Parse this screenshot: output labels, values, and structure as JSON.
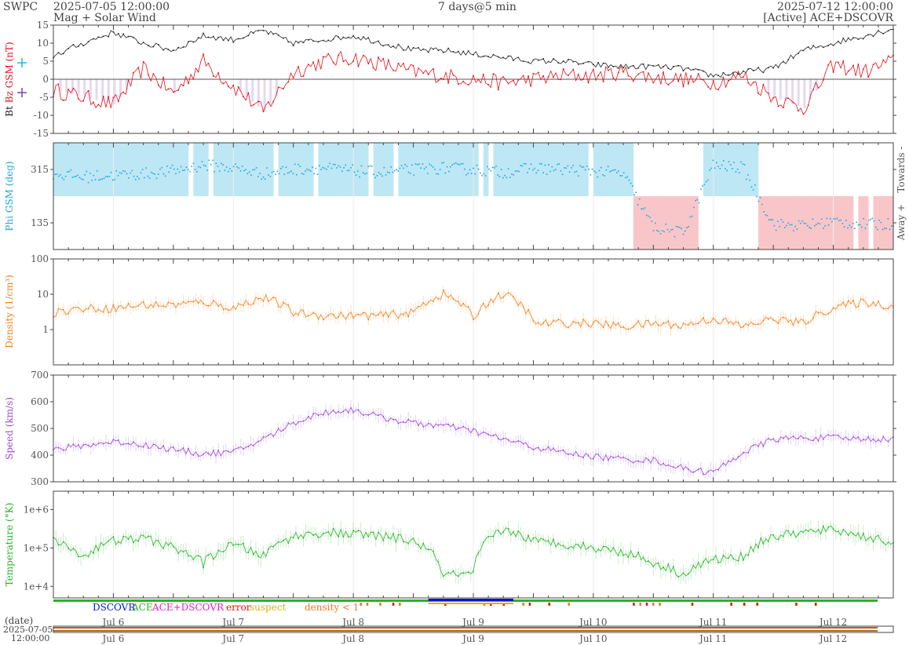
{
  "header": {
    "brand": "SWPC",
    "start_time": "2025-07-05 12:00:00",
    "subtitle": "Mag + Solar Wind",
    "span": "7 days@5 min",
    "end_time": "2025-07-12 12:00:00",
    "source": "[Active] ACE+DSCOVR"
  },
  "legend": {
    "dscovr": "DSCOVR",
    "ace": "ACE",
    "ace_dscovr": "ACE+DSCOVR",
    "error": "error",
    "suspect": "suspect",
    "density_lt1": "density < 1"
  },
  "footer": {
    "date_label": "(date)",
    "start_date": "2025-07-05",
    "start_clock": "12:00:00"
  },
  "colors": {
    "bt": "#222222",
    "bz": "#e8101a",
    "by": "#20b6e0",
    "bx": "#7a3fc0",
    "phi": "#1ea5e0",
    "phi_toward": "#bde7f5",
    "phi_away": "#f8c6c9",
    "density": "#f08320",
    "speed": "#9b4bd6",
    "temperature": "#2ab52a",
    "bz_shade": "#ddd0ee",
    "dscovr": "#1010d0",
    "ace": "#28b428",
    "ace_dscovr": "#e020c8",
    "error": "#e81010",
    "suspect": "#e0b000",
    "density_flag": "#f07820"
  },
  "chart_data": [
    {
      "type": "line",
      "panel": "mag",
      "ylabel_parts": [
        "Bt",
        "Bz GSM (nT)"
      ],
      "ylim": [
        -15,
        15
      ],
      "yticks": [
        15,
        10,
        5,
        0,
        -5,
        -10,
        -15
      ],
      "x_dates": [
        "Jul 6",
        "Jul 7",
        "Jul 8",
        "Jul 9",
        "Jul 10",
        "Jul 11",
        "Jul 12"
      ],
      "x_hours": [
        0,
        6,
        12,
        18,
        24,
        30,
        36,
        42,
        48,
        54,
        60,
        66,
        72,
        78,
        84,
        90,
        96,
        102,
        108,
        114,
        120,
        126,
        132,
        138,
        144,
        150,
        156,
        162,
        168
      ],
      "series": [
        {
          "name": "Bt",
          "values": [
            6.5,
            10,
            13,
            10,
            8,
            12,
            11,
            13.5,
            10,
            11,
            12,
            10,
            8,
            8,
            7,
            6,
            5,
            5,
            4,
            3.5,
            3.5,
            3,
            1,
            2,
            3,
            8,
            10,
            12,
            14
          ]
        },
        {
          "name": "Bz",
          "values": [
            -3,
            -5,
            -7,
            3,
            -4,
            5,
            -2,
            -9,
            2,
            5,
            6,
            4,
            2,
            1,
            0,
            -1,
            0,
            1,
            1,
            2,
            0.5,
            0,
            -1,
            1,
            -5,
            -8,
            4,
            2,
            5
          ]
        }
      ]
    },
    {
      "type": "scatter",
      "panel": "phi",
      "ylabel": "Phi GSM (deg)",
      "ylim": [
        45,
        405
      ],
      "yticks": [
        315,
        135
      ],
      "side_labels": [
        "Towards -",
        "Away +"
      ],
      "x_hours": [
        0,
        6,
        12,
        18,
        24,
        30,
        36,
        42,
        48,
        54,
        60,
        66,
        72,
        78,
        84,
        90,
        96,
        102,
        108,
        114,
        120,
        126,
        132,
        138,
        144,
        150,
        156,
        162,
        168
      ],
      "values": [
        300,
        290,
        295,
        300,
        310,
        330,
        320,
        300,
        315,
        320,
        310,
        305,
        315,
        320,
        315,
        305,
        320,
        315,
        310,
        300,
        120,
        100,
        330,
        320,
        130,
        125,
        140,
        130,
        130
      ]
    },
    {
      "type": "line",
      "panel": "density",
      "ylabel": "Density (1/cm³)",
      "scale": "log",
      "ylim": [
        0.1,
        100
      ],
      "yticks": [
        100,
        10,
        1
      ],
      "x_hours": [
        0,
        6,
        12,
        18,
        24,
        30,
        36,
        42,
        48,
        54,
        60,
        66,
        72,
        78,
        84,
        90,
        96,
        102,
        108,
        114,
        120,
        126,
        132,
        138,
        144,
        150,
        156,
        162,
        168
      ],
      "values": [
        3,
        4,
        4,
        5,
        5,
        6,
        4,
        8,
        3,
        2.5,
        2.5,
        2.5,
        3,
        10,
        2,
        10,
        1.5,
        1.5,
        1.5,
        1.2,
        1.5,
        1.3,
        2,
        1.2,
        2,
        1.5,
        4,
        6,
        4.5
      ]
    },
    {
      "type": "line",
      "panel": "speed",
      "ylabel": "Speed (km/s)",
      "ylim": [
        300,
        700
      ],
      "yticks": [
        700,
        600,
        500,
        400,
        300
      ],
      "x_hours": [
        0,
        6,
        12,
        18,
        24,
        30,
        36,
        42,
        48,
        54,
        60,
        66,
        72,
        78,
        84,
        90,
        96,
        102,
        108,
        114,
        120,
        126,
        132,
        138,
        144,
        150,
        156,
        162,
        168
      ],
      "values": [
        420,
        435,
        450,
        440,
        420,
        405,
        410,
        460,
        520,
        560,
        570,
        540,
        520,
        510,
        490,
        460,
        430,
        410,
        395,
        385,
        380,
        350,
        335,
        410,
        460,
        465,
        465,
        460,
        460
      ]
    },
    {
      "type": "line",
      "panel": "temperature",
      "ylabel": "Temperature (°K)",
      "scale": "log",
      "yticks": [
        "1e+6",
        "1e+5",
        "1e+4"
      ],
      "ylim": [
        5000,
        3000000
      ],
      "x_hours": [
        0,
        6,
        12,
        18,
        24,
        30,
        36,
        42,
        48,
        54,
        60,
        66,
        72,
        78,
        84,
        90,
        96,
        102,
        108,
        114,
        120,
        126,
        132,
        138,
        144,
        150,
        156,
        162,
        168
      ],
      "values": [
        150000,
        60000,
        150000,
        180000,
        100000,
        40000,
        120000,
        60000,
        200000,
        250000,
        230000,
        200000,
        150000,
        20000,
        20000,
        300000,
        150000,
        130000,
        100000,
        80000,
        40000,
        20000,
        50000,
        60000,
        200000,
        250000,
        300000,
        200000,
        130000
      ]
    }
  ]
}
